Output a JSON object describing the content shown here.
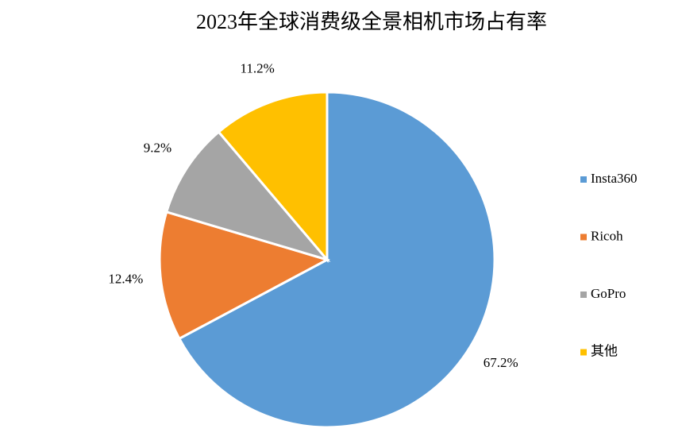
{
  "chart_data": {
    "type": "pie",
    "title": "2023年全球消费级全景相机市场占有率",
    "categories": [
      "Insta360",
      "Ricoh",
      "GoPro",
      "其他"
    ],
    "values": [
      67.2,
      12.4,
      9.2,
      11.2
    ],
    "value_labels": [
      "67.2%",
      "12.4%",
      "9.2%",
      "11.2%"
    ],
    "colors": [
      "#5b9bd5",
      "#ed7d31",
      "#a5a5a5",
      "#ffc000"
    ],
    "legend": "right"
  }
}
